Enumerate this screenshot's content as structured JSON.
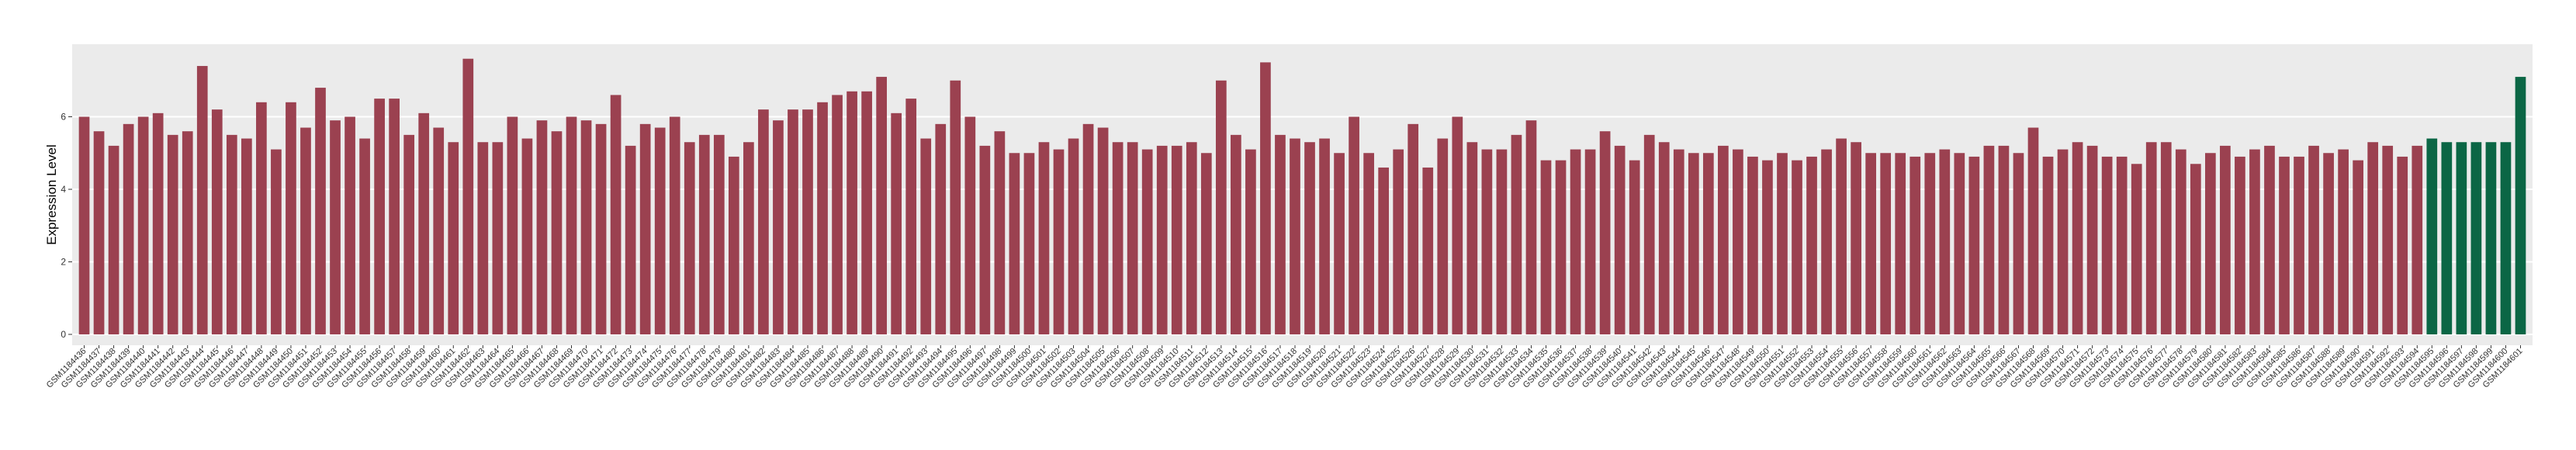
{
  "chart_data": {
    "type": "bar",
    "y_label": "Expression Level",
    "categories": [
      "GSM1184436",
      "GSM1184437",
      "GSM1184438",
      "GSM1184439",
      "GSM1184440",
      "GSM1184441",
      "GSM1184442",
      "GSM1184443",
      "GSM1184444",
      "GSM1184445",
      "GSM1184446",
      "GSM1184447",
      "GSM1184448",
      "GSM1184449",
      "GSM1184450",
      "GSM1184451",
      "GSM1184452",
      "GSM1184453",
      "GSM1184454",
      "GSM1184455",
      "GSM1184456",
      "GSM1184457",
      "GSM1184458",
      "GSM1184459",
      "GSM1184460",
      "GSM1184461",
      "GSM1184462",
      "GSM1184463",
      "GSM1184464",
      "GSM1184465",
      "GSM1184466",
      "GSM1184467",
      "GSM1184468",
      "GSM1184469",
      "GSM1184470",
      "GSM1184471",
      "GSM1184472",
      "GSM1184473",
      "GSM1184474",
      "GSM1184475",
      "GSM1184476",
      "GSM1184477",
      "GSM1184478",
      "GSM1184479",
      "GSM1184480",
      "GSM1184481",
      "GSM1184482",
      "GSM1184483",
      "GSM1184484",
      "GSM1184485",
      "GSM1184486",
      "GSM1184487",
      "GSM1184488",
      "GSM1184489",
      "GSM1184490",
      "GSM1184491",
      "GSM1184492",
      "GSM1184493",
      "GSM1184494",
      "GSM1184495",
      "GSM1184496",
      "GSM1184497",
      "GSM1184498",
      "GSM1184499",
      "GSM1184500",
      "GSM1184501",
      "GSM1184502",
      "GSM1184503",
      "GSM1184504",
      "GSM1184505",
      "GSM1184506",
      "GSM1184507",
      "GSM1184508",
      "GSM1184509",
      "GSM1184510",
      "GSM1184511",
      "GSM1184512",
      "GSM1184513",
      "GSM1184514",
      "GSM1184515",
      "GSM1184516",
      "GSM1184517",
      "GSM1184518",
      "GSM1184519",
      "GSM1184520",
      "GSM1184521",
      "GSM1184522",
      "GSM1184523",
      "GSM1184524",
      "GSM1184525",
      "GSM1184526",
      "GSM1184527",
      "GSM1184528",
      "GSM1184529",
      "GSM1184530",
      "GSM1184531",
      "GSM1184532",
      "GSM1184533",
      "GSM1184534",
      "GSM1184535",
      "GSM1184536",
      "GSM1184537",
      "GSM1184538",
      "GSM1184539",
      "GSM1184540",
      "GSM1184541",
      "GSM1184542",
      "GSM1184543",
      "GSM1184544",
      "GSM1184545",
      "GSM1184546",
      "GSM1184547",
      "GSM1184548",
      "GSM1184549",
      "GSM1184550",
      "GSM1184551",
      "GSM1184552",
      "GSM1184553",
      "GSM1184554",
      "GSM1184555",
      "GSM1184556",
      "GSM1184557",
      "GSM1184558",
      "GSM1184559",
      "GSM1184560",
      "GSM1184561",
      "GSM1184562",
      "GSM1184563",
      "GSM1184564",
      "GSM1184565",
      "GSM1184566",
      "GSM1184567",
      "GSM1184568",
      "GSM1184569",
      "GSM1184570",
      "GSM1184571",
      "GSM1184572",
      "GSM1184573",
      "GSM1184574",
      "GSM1184575",
      "GSM1184576",
      "GSM1184577",
      "GSM1184578",
      "GSM1184579",
      "GSM1184580",
      "GSM1184581",
      "GSM1184582",
      "GSM1184583",
      "GSM1184584",
      "GSM1184585",
      "GSM1184586",
      "GSM1184587",
      "GSM1184588",
      "GSM1184589",
      "GSM1184590",
      "GSM1184591",
      "GSM1184592",
      "GSM1184593",
      "GSM1184594",
      "GSM1184595",
      "GSM1184596",
      "GSM1184597",
      "GSM1184598",
      "GSM1184599",
      "GSM1184600",
      "GSM1184601"
    ],
    "values": [
      6.0,
      5.6,
      5.2,
      5.8,
      6.0,
      6.1,
      5.5,
      5.6,
      7.4,
      6.2,
      5.5,
      5.4,
      6.4,
      5.1,
      6.4,
      5.7,
      6.8,
      5.9,
      6.0,
      5.4,
      6.5,
      6.5,
      5.5,
      6.1,
      5.7,
      5.3,
      7.6,
      5.3,
      5.3,
      6.0,
      5.4,
      5.9,
      5.6,
      6.0,
      5.9,
      5.8,
      6.6,
      5.2,
      5.8,
      5.7,
      6.0,
      5.3,
      5.5,
      5.5,
      4.9,
      5.3,
      6.2,
      5.9,
      6.2,
      6.2,
      6.4,
      6.6,
      6.7,
      6.7,
      7.1,
      6.1,
      6.5,
      5.4,
      5.8,
      7.0,
      6.0,
      5.2,
      5.6,
      5.0,
      5.0,
      5.3,
      5.1,
      5.4,
      5.8,
      5.7,
      5.3,
      5.3,
      5.1,
      5.2,
      5.2,
      5.3,
      5.0,
      7.0,
      5.5,
      5.1,
      7.5,
      5.5,
      5.4,
      5.3,
      5.4,
      5.0,
      6.0,
      5.0,
      4.6,
      5.1,
      5.8,
      4.6,
      5.4,
      6.0,
      5.3,
      5.1,
      5.1,
      5.5,
      5.9,
      4.8,
      4.8,
      5.1,
      5.1,
      5.6,
      5.2,
      4.8,
      5.5,
      5.3,
      5.1,
      5.0,
      5.0,
      5.2,
      5.1,
      4.9,
      4.8,
      5.0,
      4.8,
      4.9,
      5.1,
      5.4,
      5.3,
      5.0,
      5.0,
      5.0,
      4.9,
      5.0,
      5.1,
      5.0,
      4.9,
      5.2,
      5.2,
      5.0,
      5.7,
      4.9,
      5.1,
      5.3,
      5.2,
      4.9,
      4.9,
      4.7,
      5.3,
      5.3,
      5.1,
      4.7,
      5.0,
      5.2,
      4.9,
      5.1,
      5.2,
      4.9,
      4.9,
      5.2,
      5.0,
      5.1,
      4.8,
      5.3,
      5.2,
      4.9,
      5.2,
      5.4,
      5.3,
      5.3,
      5.3,
      5.3,
      5.3,
      7.1
    ],
    "colors": {
      "default": "#9b4150",
      "highlight": "#0b6645",
      "highlight_from": 159
    },
    "ylim": [
      -0.3,
      8.0
    ],
    "yticks": [
      0,
      2,
      4,
      6
    ],
    "grid": true
  }
}
